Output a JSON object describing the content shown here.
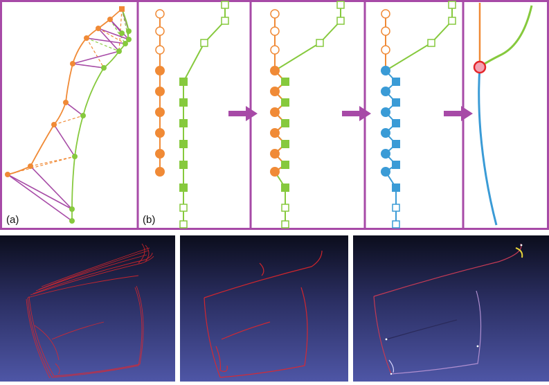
{
  "labels": {
    "a": "(a)",
    "b": "(b)"
  },
  "colors": {
    "frame": "#a74aa7",
    "orange": "#f08a36",
    "green": "#86c93d",
    "blue": "#3a9bd6",
    "purple": "#a74aa7",
    "red": "#e3262a",
    "pink": "#f3a3b4",
    "bg_dark": "#0b0d1c",
    "bg_light": "#4e56a6"
  }
}
